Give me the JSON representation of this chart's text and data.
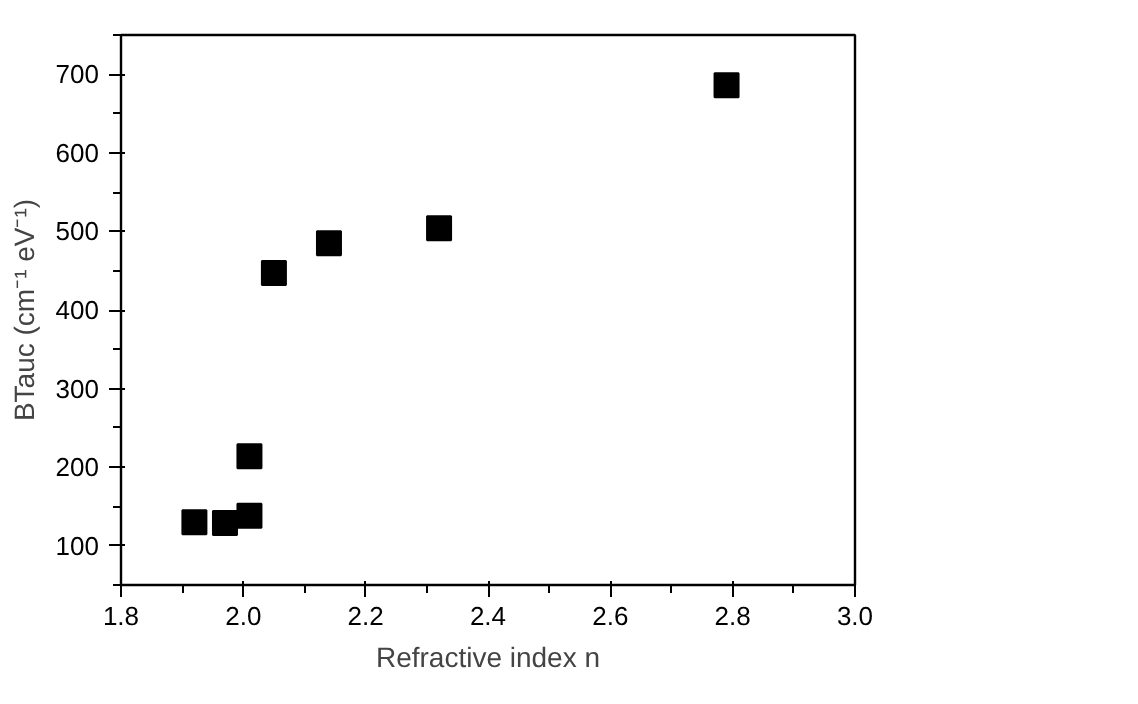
{
  "chart_data": {
    "type": "scatter",
    "xlabel": "Refractive index n",
    "ylabel": "BTauc (cm⁻¹ eV⁻¹)",
    "x": [
      1.92,
      1.97,
      2.01,
      2.01,
      2.05,
      2.14,
      2.32,
      2.79
    ],
    "series": [
      {
        "color": "#000000",
        "values": [
          130,
          129,
          138,
          214,
          447,
          485,
          504,
          686
        ]
      }
    ],
    "xlim": [
      1.8,
      3.0
    ],
    "xticks": [
      1.8,
      {
        "value": 2,
        "label": "2.0"
      },
      2.2,
      2.4,
      2.6,
      2.8,
      {
        "value": 3,
        "label": "3.0"
      }
    ],
    "ylim": [
      50,
      750
    ],
    "yticks": [
      100,
      200,
      300,
      400,
      500,
      600,
      700
    ],
    "marker": "square"
  }
}
